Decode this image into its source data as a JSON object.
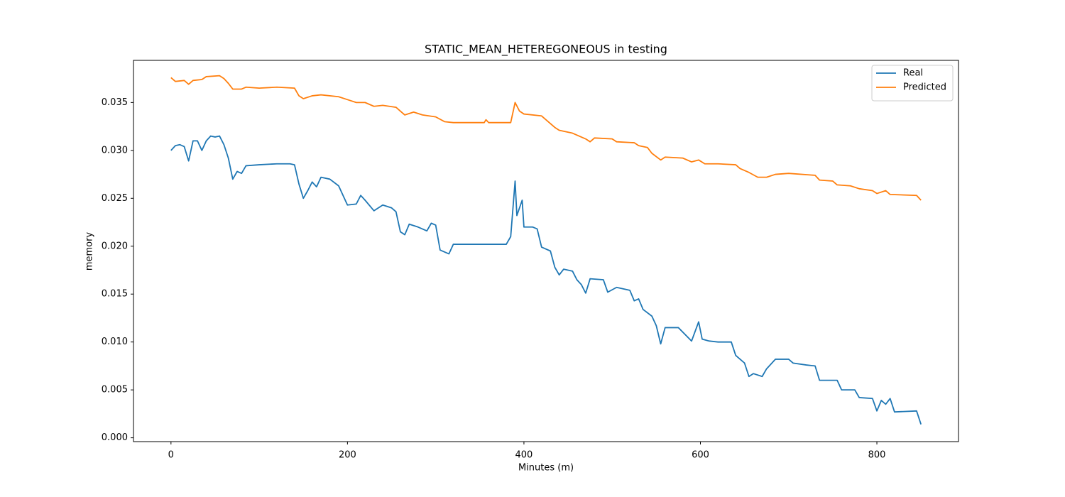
{
  "chart_data": {
    "type": "line",
    "title": "STATIC_MEAN_HETEREGONEOUS in testing",
    "x_label": "Minutes (m)",
    "y_label": "memory",
    "xlim": [
      -42.5,
      892.5
    ],
    "ylim": [
      -0.0004,
      0.0394
    ],
    "xticks": [
      0,
      200,
      400,
      600,
      800
    ],
    "yticks": [
      {
        "value": 0,
        "label": "0.000"
      },
      {
        "value": 0.005,
        "label": "0.005"
      },
      {
        "value": 0.01,
        "label": "0.010"
      },
      {
        "value": 0.015,
        "label": "0.015"
      },
      {
        "value": 0.02,
        "label": "0.020"
      },
      {
        "value": 0.025,
        "label": "0.025"
      },
      {
        "value": 0.03,
        "label": "0.030"
      },
      {
        "value": 0.035,
        "label": "0.035"
      }
    ],
    "legend": "upper right",
    "series": [
      {
        "name": "Real",
        "color": "#1f77b4",
        "x": [
          0,
          5,
          10,
          15,
          20,
          25,
          30,
          35,
          40,
          45,
          50,
          55,
          60,
          65,
          70,
          75,
          80,
          85,
          100,
          120,
          135,
          140,
          145,
          150,
          155,
          160,
          165,
          170,
          180,
          190,
          200,
          210,
          215,
          220,
          230,
          240,
          250,
          255,
          260,
          265,
          270,
          280,
          290,
          295,
          300,
          305,
          315,
          320,
          340,
          355,
          360,
          380,
          385,
          390,
          392,
          398,
          400,
          410,
          415,
          420,
          430,
          435,
          440,
          445,
          455,
          460,
          465,
          470,
          475,
          490,
          495,
          505,
          520,
          525,
          530,
          535,
          545,
          550,
          555,
          560,
          575,
          590,
          598,
          602,
          610,
          620,
          635,
          640,
          650,
          655,
          660,
          670,
          675,
          685,
          700,
          705,
          720,
          730,
          735,
          755,
          760,
          775,
          780,
          795,
          800,
          805,
          810,
          815,
          820,
          845,
          850
        ],
        "values": [
          0.03,
          0.0305,
          0.0306,
          0.0304,
          0.0289,
          0.031,
          0.031,
          0.03,
          0.031,
          0.0315,
          0.0314,
          0.0315,
          0.0306,
          0.0292,
          0.027,
          0.0278,
          0.0276,
          0.0284,
          0.0285,
          0.0286,
          0.0286,
          0.0285,
          0.0265,
          0.025,
          0.0258,
          0.0267,
          0.0262,
          0.0272,
          0.027,
          0.0263,
          0.0243,
          0.0244,
          0.0253,
          0.0248,
          0.0237,
          0.0243,
          0.024,
          0.0236,
          0.0215,
          0.0212,
          0.0223,
          0.022,
          0.0216,
          0.0224,
          0.0222,
          0.0196,
          0.0192,
          0.0202,
          0.0202,
          0.0202,
          0.0202,
          0.0202,
          0.021,
          0.0268,
          0.0232,
          0.0248,
          0.022,
          0.022,
          0.0218,
          0.0199,
          0.0195,
          0.0178,
          0.017,
          0.0176,
          0.0174,
          0.0165,
          0.016,
          0.0151,
          0.0166,
          0.0165,
          0.0152,
          0.0157,
          0.0154,
          0.0143,
          0.0145,
          0.0134,
          0.0127,
          0.0117,
          0.0098,
          0.0115,
          0.0115,
          0.0101,
          0.0121,
          0.0103,
          0.0101,
          0.01,
          0.01,
          0.0086,
          0.0078,
          0.0064,
          0.0067,
          0.0064,
          0.0072,
          0.0082,
          0.0082,
          0.0078,
          0.0076,
          0.0075,
          0.006,
          0.006,
          0.005,
          0.005,
          0.0042,
          0.0041,
          0.0028,
          0.0039,
          0.0035,
          0.0041,
          0.0027,
          0.0028,
          0.0014
        ]
      },
      {
        "name": "Predicted",
        "color": "#ff7f0e",
        "x": [
          0,
          5,
          15,
          20,
          25,
          35,
          40,
          55,
          60,
          65,
          70,
          80,
          85,
          100,
          120,
          140,
          145,
          150,
          160,
          170,
          190,
          200,
          210,
          220,
          230,
          240,
          255,
          260,
          265,
          275,
          285,
          300,
          310,
          320,
          355,
          357,
          360,
          385,
          390,
          395,
          400,
          420,
          425,
          435,
          440,
          455,
          470,
          475,
          480,
          500,
          505,
          525,
          530,
          540,
          545,
          555,
          560,
          580,
          590,
          598,
          605,
          620,
          640,
          645,
          655,
          665,
          675,
          685,
          700,
          730,
          735,
          750,
          755,
          770,
          780,
          795,
          800,
          810,
          815,
          845,
          850
        ],
        "values": [
          0.0376,
          0.0372,
          0.0373,
          0.0369,
          0.0373,
          0.0374,
          0.0377,
          0.0378,
          0.0375,
          0.037,
          0.0364,
          0.0364,
          0.0366,
          0.0365,
          0.0366,
          0.0365,
          0.0357,
          0.0354,
          0.0357,
          0.0358,
          0.0356,
          0.0353,
          0.035,
          0.035,
          0.0346,
          0.0347,
          0.0345,
          0.0341,
          0.0337,
          0.034,
          0.0337,
          0.0335,
          0.033,
          0.0329,
          0.0329,
          0.0332,
          0.0329,
          0.0329,
          0.035,
          0.0341,
          0.0338,
          0.0336,
          0.0332,
          0.0324,
          0.0321,
          0.0318,
          0.0312,
          0.0309,
          0.0313,
          0.0312,
          0.0309,
          0.0308,
          0.0305,
          0.0303,
          0.0297,
          0.029,
          0.0293,
          0.0292,
          0.0288,
          0.029,
          0.0286,
          0.0286,
          0.0285,
          0.0281,
          0.0277,
          0.0272,
          0.0272,
          0.0275,
          0.0276,
          0.0274,
          0.0269,
          0.0268,
          0.0264,
          0.0263,
          0.026,
          0.0258,
          0.0255,
          0.0258,
          0.0254,
          0.0253,
          0.0248
        ]
      }
    ]
  }
}
